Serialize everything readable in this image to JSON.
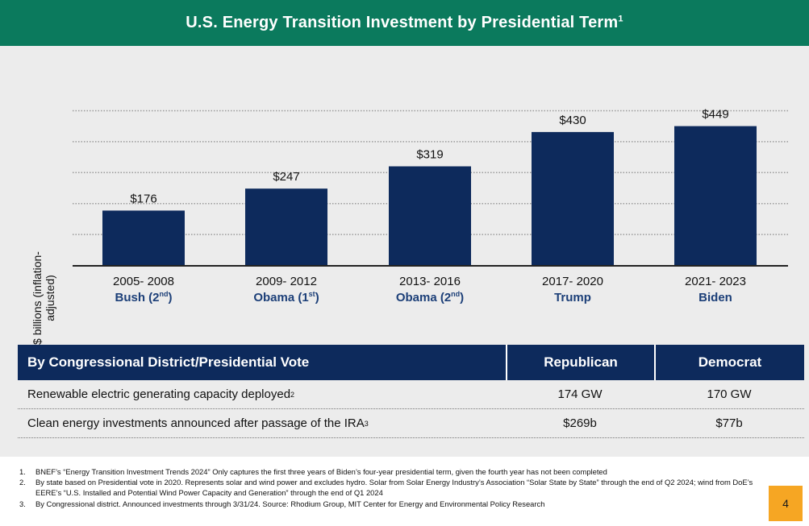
{
  "header": {
    "title": "U.S. Energy Transition Investment by Presidential Term",
    "footnote_ref": "1"
  },
  "chart_data": {
    "type": "bar",
    "ylabel": "$ billions (inflation-adjusted)",
    "ylim": [
      0,
      500
    ],
    "grid": true,
    "categories": [
      {
        "years": "2005- 2008",
        "president": "Bush",
        "term": "2",
        "term_suffix": "nd",
        "close": ")"
      },
      {
        "years": "2009- 2012",
        "president": "Obama",
        "term": "1",
        "term_suffix": "st",
        "close": ")"
      },
      {
        "years": "2013- 2016",
        "president": "Obama",
        "term": "2",
        "term_suffix": "nd",
        "close": ")"
      },
      {
        "years": "2017- 2020",
        "president": "Trump",
        "term": "",
        "term_suffix": "",
        "close": ""
      },
      {
        "years": "2021- 2023",
        "president": "Biden",
        "term": "",
        "term_suffix": "",
        "close": ""
      }
    ],
    "values": [
      176,
      247,
      319,
      430,
      449
    ],
    "value_labels": [
      "$176",
      "$247",
      "$319",
      "$430",
      "$449"
    ],
    "bar_color": "#0d2a5c"
  },
  "table": {
    "headers": [
      "By Congressional District/Presidential Vote",
      "Republican",
      "Democrat"
    ],
    "rows": [
      {
        "label": "Renewable electric generating capacity deployed",
        "ref": "2",
        "republican": "174 GW",
        "democrat": "170 GW"
      },
      {
        "label": "Clean energy investments announced after passage of the IRA",
        "ref": "3",
        "republican": "$269b",
        "democrat": "$77b"
      }
    ]
  },
  "footnotes": [
    {
      "num": "1.",
      "text": "BNEF’s “Energy Transition Investment Trends 2024” Only captures the first three years of Biden’s four-year presidential term, given the fourth year has not been completed"
    },
    {
      "num": "2.",
      "text": "By state based on Presidential vote in 2020. Represents solar and wind power and excludes hydro. Solar from Solar Energy Industry’s Association “Solar State by State” through the end of Q2 2024; wind from DoE’s EERE’s “U.S. Installed and Potential Wind Power Capacity and Generation” through the end of Q1 2024"
    },
    {
      "num": "3.",
      "text": "By Congressional district. Announced investments through 3/31/24. Source: Rhodium Group, MIT Center for Energy and Environmental Policy Research"
    }
  ],
  "page_number": "4",
  "colors": {
    "header_bg": "#0b7a5d",
    "panel_bg": "#ececec",
    "navy": "#0d2a5c",
    "label_blue": "#1c3f78",
    "page_tag": "#f6a623"
  }
}
